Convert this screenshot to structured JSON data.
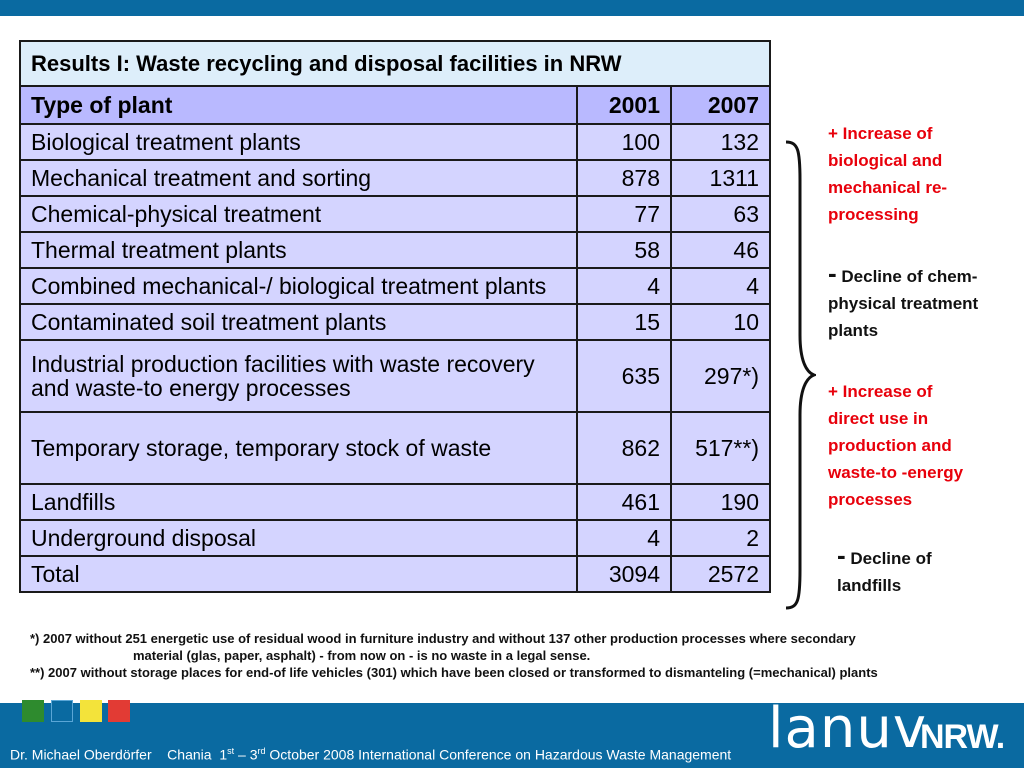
{
  "table": {
    "title": "Results I: Waste recycling and disposal facilities in NRW",
    "headers": {
      "type": "Type of plant",
      "y2001": "2001",
      "y2007": "2007"
    },
    "rows": [
      {
        "label": "Biological treatment plants",
        "v2001": "100",
        "v2007": "132"
      },
      {
        "label": "Mechanical treatment and sorting",
        "v2001": "878",
        "v2007": "1311"
      },
      {
        "label": "Chemical-physical treatment",
        "v2001": "77",
        "v2007": "63"
      },
      {
        "label": "Thermal treatment plants",
        "v2001": "58",
        "v2007": "46"
      },
      {
        "label": "Combined mechanical-/ biological treatment plants",
        "v2001": "4",
        "v2007": "4"
      },
      {
        "label": "Contaminated soil treatment plants",
        "v2001": "15",
        "v2007": "10"
      },
      {
        "label_line1": "Industrial production facilities with waste recovery",
        "label_line2": "and waste-to energy processes",
        "v2001": "635",
        "v2007": "297*)"
      },
      {
        "label": "Temporary storage, temporary stock of waste",
        "v2001": "862",
        "v2007": "517**)"
      },
      {
        "label": "Landfills",
        "v2001": "461",
        "v2007": "190"
      },
      {
        "label": "Underground disposal",
        "v2001": "4",
        "v2007": "2"
      },
      {
        "label": "Total",
        "v2001": "3094",
        "v2007": "2572"
      }
    ]
  },
  "notes": {
    "n1": [
      "+ Increase of",
      "biological and",
      "mechanical re-",
      "processing"
    ],
    "n2_sign": "-",
    "n2": [
      " Decline of chem-",
      "physical treatment",
      "plants"
    ],
    "n3": [
      "+ Increase of",
      "direct use in",
      "production and",
      "waste-to -energy",
      "processes"
    ],
    "n4_sign": "-",
    "n4": [
      " Decline of",
      "landfills"
    ]
  },
  "footnotes": {
    "fn1_line1": "*) 2007 without 251 energetic use of residual wood in furniture industry and without 137 other production processes where secondary",
    "fn1_line2": "material (glas, paper, asphalt) - from now on - is no waste in a legal sense.",
    "fn2": "**) 2007 without storage places for end-of life vehicles (301) which have been closed or transformed to dismanteling (=mechanical) plants"
  },
  "footer": {
    "author": "Dr. Michael Oberdörfer",
    "place": "Chania",
    "day1": "1",
    "day1_sup": "st",
    "dash": "–",
    "day2": "3",
    "day2_sup": "rd",
    "rest": "October 2008  International Conference on Hazardous Waste Management"
  },
  "logo": {
    "lanuv": "lanuv",
    "nrw": "NRW."
  },
  "colors": {
    "bar": "#0a6aa1",
    "highlight": "#e8000b",
    "header_bg": "#b9b9ff",
    "row_bg": "#d4d4ff",
    "title_bg": "#ddeefa"
  }
}
